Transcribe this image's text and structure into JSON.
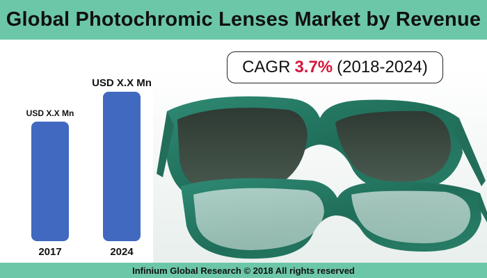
{
  "header": {
    "title": "Global Photochromic Lenses Market by Revenue"
  },
  "cagr": {
    "prefix": "CAGR",
    "value": "3.7%",
    "period": "(2018-2024)"
  },
  "footer": {
    "text": "Infinium Global Research © 2018 All rights reserved"
  },
  "photo": {
    "subject": "eyeglasses-icon"
  },
  "colors": {
    "band": "#6cc7a8",
    "bar": "#4169c0",
    "cagr_value": "#d6163a"
  },
  "chart_data": {
    "type": "bar",
    "categories": [
      "2017",
      "2024"
    ],
    "values": [
      1.0,
      1.25
    ],
    "data_labels": [
      "USD X.X Mn",
      "USD X.X Mn"
    ],
    "title": "",
    "xlabel": "",
    "ylabel": "",
    "ylim": [
      0,
      1.25
    ],
    "grid": false
  }
}
